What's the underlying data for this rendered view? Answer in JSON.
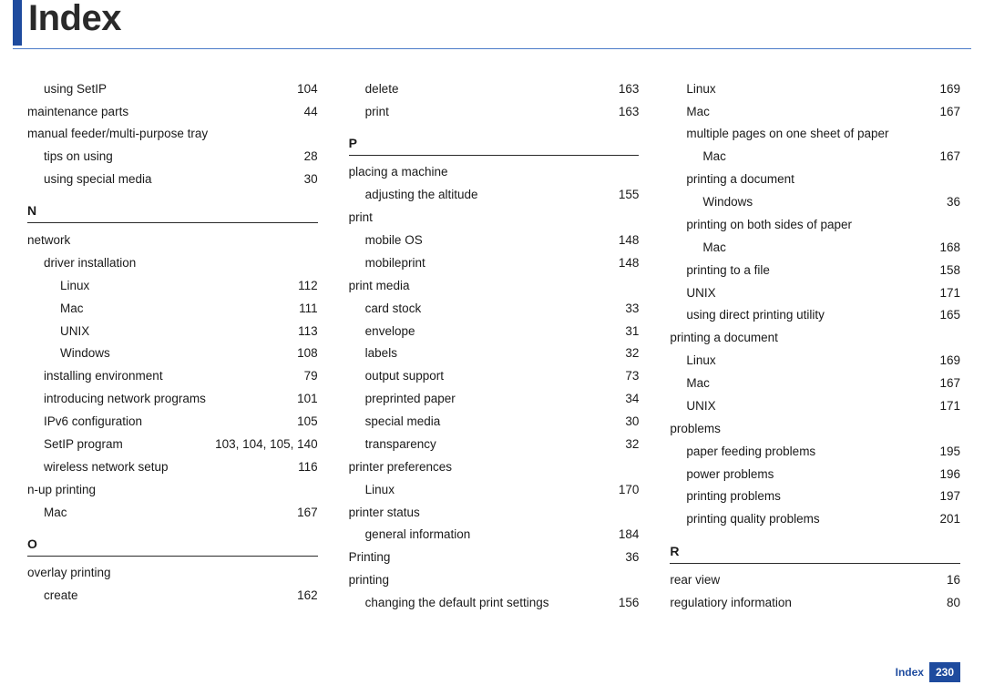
{
  "title": "Index",
  "footer": {
    "label": "Index",
    "page": "230"
  },
  "columns": [
    [
      {
        "type": "entry",
        "level": 1,
        "label": "using SetIP",
        "page": "104"
      },
      {
        "type": "entry",
        "level": 0,
        "label": "maintenance parts",
        "page": "44"
      },
      {
        "type": "entry",
        "level": 0,
        "label": "manual feeder/multi-purpose tray",
        "page": ""
      },
      {
        "type": "entry",
        "level": 1,
        "label": "tips on using",
        "page": "28"
      },
      {
        "type": "entry",
        "level": 1,
        "label": "using special media",
        "page": "30"
      },
      {
        "type": "letter",
        "label": "N"
      },
      {
        "type": "entry",
        "level": 0,
        "label": "network",
        "page": ""
      },
      {
        "type": "entry",
        "level": 1,
        "label": "driver installation",
        "page": ""
      },
      {
        "type": "entry",
        "level": 2,
        "label": "Linux",
        "page": "112"
      },
      {
        "type": "entry",
        "level": 2,
        "label": "Mac",
        "page": "111"
      },
      {
        "type": "entry",
        "level": 2,
        "label": "UNIX",
        "page": "113"
      },
      {
        "type": "entry",
        "level": 2,
        "label": "Windows",
        "page": "108"
      },
      {
        "type": "entry",
        "level": 1,
        "label": "installing environment",
        "page": "79"
      },
      {
        "type": "entry",
        "level": 1,
        "label": "introducing network programs",
        "page": "101"
      },
      {
        "type": "entry",
        "level": 1,
        "label": "IPv6 configuration",
        "page": "105"
      },
      {
        "type": "entry",
        "level": 1,
        "label": "SetIP program",
        "page": "103, 104, 105, 140"
      },
      {
        "type": "entry",
        "level": 1,
        "label": "wireless network setup",
        "page": "116"
      },
      {
        "type": "entry",
        "level": 0,
        "label": "n-up printing",
        "page": ""
      },
      {
        "type": "entry",
        "level": 1,
        "label": "Mac",
        "page": "167"
      },
      {
        "type": "letter",
        "label": "O"
      },
      {
        "type": "entry",
        "level": 0,
        "label": "overlay printing",
        "page": ""
      },
      {
        "type": "entry",
        "level": 1,
        "label": "create",
        "page": "162"
      }
    ],
    [
      {
        "type": "entry",
        "level": 1,
        "label": "delete",
        "page": "163"
      },
      {
        "type": "entry",
        "level": 1,
        "label": "print",
        "page": "163"
      },
      {
        "type": "letter",
        "label": "P"
      },
      {
        "type": "entry",
        "level": 0,
        "label": "placing a machine",
        "page": ""
      },
      {
        "type": "entry",
        "level": 1,
        "label": "adjusting the altitude",
        "page": "155"
      },
      {
        "type": "entry",
        "level": 0,
        "label": "print",
        "page": ""
      },
      {
        "type": "entry",
        "level": 1,
        "label": "mobile OS",
        "page": "148"
      },
      {
        "type": "entry",
        "level": 1,
        "label": "mobileprint",
        "page": "148"
      },
      {
        "type": "entry",
        "level": 0,
        "label": "print media",
        "page": ""
      },
      {
        "type": "entry",
        "level": 1,
        "label": "card stock",
        "page": "33"
      },
      {
        "type": "entry",
        "level": 1,
        "label": "envelope",
        "page": "31"
      },
      {
        "type": "entry",
        "level": 1,
        "label": "labels",
        "page": "32"
      },
      {
        "type": "entry",
        "level": 1,
        "label": "output support",
        "page": "73"
      },
      {
        "type": "entry",
        "level": 1,
        "label": "preprinted paper",
        "page": "34"
      },
      {
        "type": "entry",
        "level": 1,
        "label": "special media",
        "page": "30"
      },
      {
        "type": "entry",
        "level": 1,
        "label": "transparency",
        "page": "32"
      },
      {
        "type": "entry",
        "level": 0,
        "label": "printer preferences",
        "page": ""
      },
      {
        "type": "entry",
        "level": 1,
        "label": "Linux",
        "page": "170"
      },
      {
        "type": "entry",
        "level": 0,
        "label": "printer status",
        "page": ""
      },
      {
        "type": "entry",
        "level": 1,
        "label": "general information",
        "page": "184"
      },
      {
        "type": "entry",
        "level": 0,
        "label": "Printing",
        "page": "36"
      },
      {
        "type": "entry",
        "level": 0,
        "label": "printing",
        "page": ""
      },
      {
        "type": "entry",
        "level": 1,
        "label": "changing the default print settings",
        "page": "156"
      }
    ],
    [
      {
        "type": "entry",
        "level": 1,
        "label": "Linux",
        "page": "169"
      },
      {
        "type": "entry",
        "level": 1,
        "label": "Mac",
        "page": "167"
      },
      {
        "type": "entry",
        "level": 1,
        "label": "multiple pages on one sheet of paper",
        "page": ""
      },
      {
        "type": "entry",
        "level": 2,
        "label": "Mac",
        "page": "167"
      },
      {
        "type": "entry",
        "level": 1,
        "label": "printing a document",
        "page": ""
      },
      {
        "type": "entry",
        "level": 2,
        "label": "Windows",
        "page": "36"
      },
      {
        "type": "entry",
        "level": 1,
        "label": "printing on both sides of paper",
        "page": ""
      },
      {
        "type": "entry",
        "level": 2,
        "label": "Mac",
        "page": "168"
      },
      {
        "type": "entry",
        "level": 1,
        "label": "printing to a file",
        "page": "158"
      },
      {
        "type": "entry",
        "level": 1,
        "label": "UNIX",
        "page": "171"
      },
      {
        "type": "entry",
        "level": 1,
        "label": "using direct printing utility",
        "page": "165"
      },
      {
        "type": "entry",
        "level": 0,
        "label": "printing a document",
        "page": ""
      },
      {
        "type": "entry",
        "level": 1,
        "label": "Linux",
        "page": "169"
      },
      {
        "type": "entry",
        "level": 1,
        "label": "Mac",
        "page": "167"
      },
      {
        "type": "entry",
        "level": 1,
        "label": "UNIX",
        "page": "171"
      },
      {
        "type": "entry",
        "level": 0,
        "label": "problems",
        "page": ""
      },
      {
        "type": "entry",
        "level": 1,
        "label": "paper feeding problems",
        "page": "195"
      },
      {
        "type": "entry",
        "level": 1,
        "label": "power problems",
        "page": "196"
      },
      {
        "type": "entry",
        "level": 1,
        "label": "printing problems",
        "page": "197"
      },
      {
        "type": "entry",
        "level": 1,
        "label": "printing quality problems",
        "page": "201"
      },
      {
        "type": "letter",
        "label": "R"
      },
      {
        "type": "entry",
        "level": 0,
        "label": "rear view",
        "page": "16"
      },
      {
        "type": "entry",
        "level": 0,
        "label": "regulatiory information",
        "page": "80"
      }
    ]
  ]
}
